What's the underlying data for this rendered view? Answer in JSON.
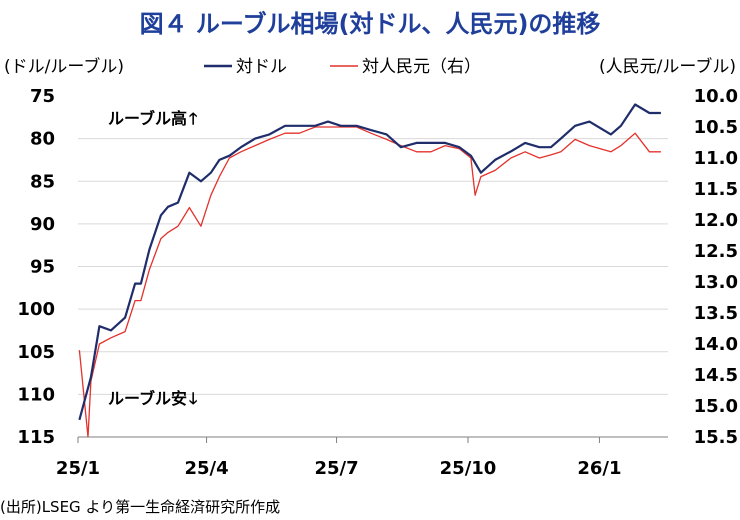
{
  "chart_data": {
    "type": "line",
    "title": "図４ ルーブル相場(対ドル、人民元)の推移",
    "left_axis_label": "(ドル/ルーブル)",
    "right_axis_label": "(人民元/ルーブル)",
    "annotations": {
      "up": "ルーブル高",
      "down": "ルーブル安"
    },
    "source": "(出所)LSEG より第一生命経済研究所作成",
    "x_ticks": [
      "25/1",
      "25/4",
      "25/7",
      "25/10",
      "26/1"
    ],
    "y_left": {
      "min": 75,
      "max": 115,
      "inverted": true,
      "ticks": [
        "75",
        "80",
        "85",
        "90",
        "95",
        "100",
        "105",
        "110",
        "115"
      ]
    },
    "y_right": {
      "min": 10.0,
      "max": 15.5,
      "inverted": true,
      "ticks": [
        "10.0",
        "10.5",
        "11.0",
        "11.5",
        "12.0",
        "12.5",
        "13.0",
        "13.5",
        "14.0",
        "14.5",
        "15.0",
        "15.5"
      ]
    },
    "grid": "horizontal",
    "legend_position": "top",
    "series": [
      {
        "name": "対ドル",
        "axis": "left",
        "color": "#1f2d6b",
        "x": [
          "2025-01-02",
          "2025-01-10",
          "2025-01-16",
          "2025-01-24",
          "2025-02-03",
          "2025-02-10",
          "2025-02-14",
          "2025-02-20",
          "2025-02-28",
          "2025-03-05",
          "2025-03-12",
          "2025-03-20",
          "2025-03-28",
          "2025-04-04",
          "2025-04-10",
          "2025-04-17",
          "2025-04-25",
          "2025-05-05",
          "2025-05-15",
          "2025-05-26",
          "2025-06-05",
          "2025-06-16",
          "2025-06-25",
          "2025-07-04",
          "2025-07-15",
          "2025-07-25",
          "2025-08-05",
          "2025-08-15",
          "2025-08-26",
          "2025-09-05",
          "2025-09-15",
          "2025-09-25",
          "2025-10-03",
          "2025-10-10",
          "2025-10-20",
          "2025-10-31",
          "2025-11-10",
          "2025-11-20",
          "2025-11-28",
          "2025-12-05",
          "2025-12-15",
          "2025-12-25",
          "2026-01-09",
          "2026-01-16",
          "2026-01-26",
          "2026-02-05",
          "2026-02-13"
        ],
        "values": [
          113,
          108,
          102,
          102.5,
          101,
          97,
          97,
          93,
          89,
          88,
          87.5,
          84,
          85,
          84,
          82.5,
          82,
          81,
          80,
          79.5,
          78.5,
          78.5,
          78.5,
          78,
          78.5,
          78.5,
          79,
          79.5,
          81,
          80.5,
          80.5,
          80.5,
          81,
          82,
          84,
          82.5,
          81.5,
          80.5,
          81,
          81,
          80,
          78.5,
          78,
          79.5,
          78.5,
          76,
          77,
          77
        ]
      },
      {
        "name": "対人民元（右）",
        "axis": "right",
        "color": "#e3322c",
        "x": [
          "2025-01-02",
          "2025-01-08",
          "2025-01-10",
          "2025-01-16",
          "2025-01-24",
          "2025-02-03",
          "2025-02-10",
          "2025-02-14",
          "2025-02-20",
          "2025-02-28",
          "2025-03-05",
          "2025-03-12",
          "2025-03-20",
          "2025-03-28",
          "2025-04-04",
          "2025-04-10",
          "2025-04-17",
          "2025-04-25",
          "2025-05-05",
          "2025-05-15",
          "2025-05-26",
          "2025-06-05",
          "2025-06-16",
          "2025-06-25",
          "2025-07-04",
          "2025-07-15",
          "2025-07-25",
          "2025-08-05",
          "2025-08-15",
          "2025-08-26",
          "2025-09-05",
          "2025-09-15",
          "2025-09-25",
          "2025-10-03",
          "2025-10-06",
          "2025-10-10",
          "2025-10-20",
          "2025-10-31",
          "2025-11-10",
          "2025-11-20",
          "2025-11-28",
          "2025-12-05",
          "2025-12-15",
          "2025-12-25",
          "2026-01-09",
          "2026-01-16",
          "2026-01-26",
          "2026-02-05",
          "2026-02-13"
        ],
        "values": [
          14.1,
          15.5,
          14.6,
          14.0,
          13.9,
          13.8,
          13.3,
          13.3,
          12.8,
          12.3,
          12.2,
          12.1,
          11.8,
          12.1,
          11.6,
          11.3,
          11.0,
          10.9,
          10.8,
          10.7,
          10.6,
          10.6,
          10.5,
          10.5,
          10.5,
          10.5,
          10.6,
          10.7,
          10.8,
          10.9,
          10.9,
          10.8,
          10.85,
          11.0,
          11.6,
          11.3,
          11.2,
          11.0,
          10.9,
          11.0,
          10.95,
          10.9,
          10.7,
          10.8,
          10.9,
          10.8,
          10.6,
          10.9,
          10.9
        ]
      }
    ]
  }
}
